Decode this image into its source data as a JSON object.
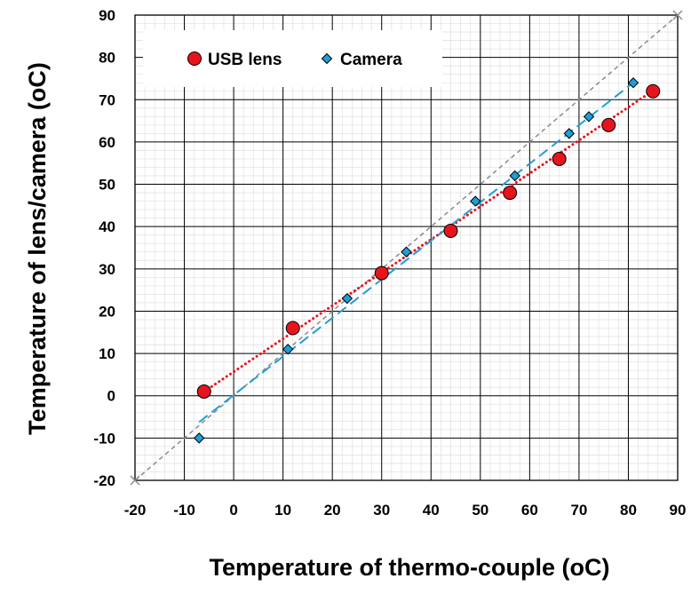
{
  "chart_data": {
    "type": "scatter",
    "xlabel": "Temperature of thermo-couple (oC)",
    "ylabel": "Temperature of lens/camera (oC)",
    "xlim": [
      -20,
      90
    ],
    "ylim": [
      -20,
      90
    ],
    "x_major": 10,
    "y_major": 10,
    "grid": "major and minor",
    "legend_position": "top-left",
    "series": [
      {
        "name": "USB lens",
        "marker": "circle",
        "color": "#e8141c",
        "trendline_color": "#e8141c",
        "trendline_style": "dotted",
        "x": [
          -6,
          12,
          30,
          44,
          56,
          66,
          76,
          85
        ],
        "y": [
          1,
          16,
          29,
          39,
          48,
          56,
          64,
          72
        ]
      },
      {
        "name": "Camera",
        "marker": "diamond",
        "color": "#1f9fd6",
        "trendline_color": "#1ea0d6",
        "trendline_style": "dashed",
        "x": [
          -7,
          11,
          23,
          35,
          49,
          57,
          68,
          72,
          81
        ],
        "y": [
          -10,
          11,
          23,
          34,
          46,
          52,
          62,
          66,
          74
        ]
      }
    ],
    "reference_line": {
      "x": [
        -20,
        90
      ],
      "y": [
        -20,
        90
      ],
      "color": "#8a8a8a",
      "style": "dashed"
    },
    "trendlines": [
      {
        "series": "USB lens",
        "x": [
          -6,
          85
        ],
        "y": [
          0.97,
          72.12
        ]
      },
      {
        "series": "Camera",
        "x": [
          -7,
          81
        ],
        "y": [
          -6.22,
          74.02
        ]
      }
    ]
  }
}
